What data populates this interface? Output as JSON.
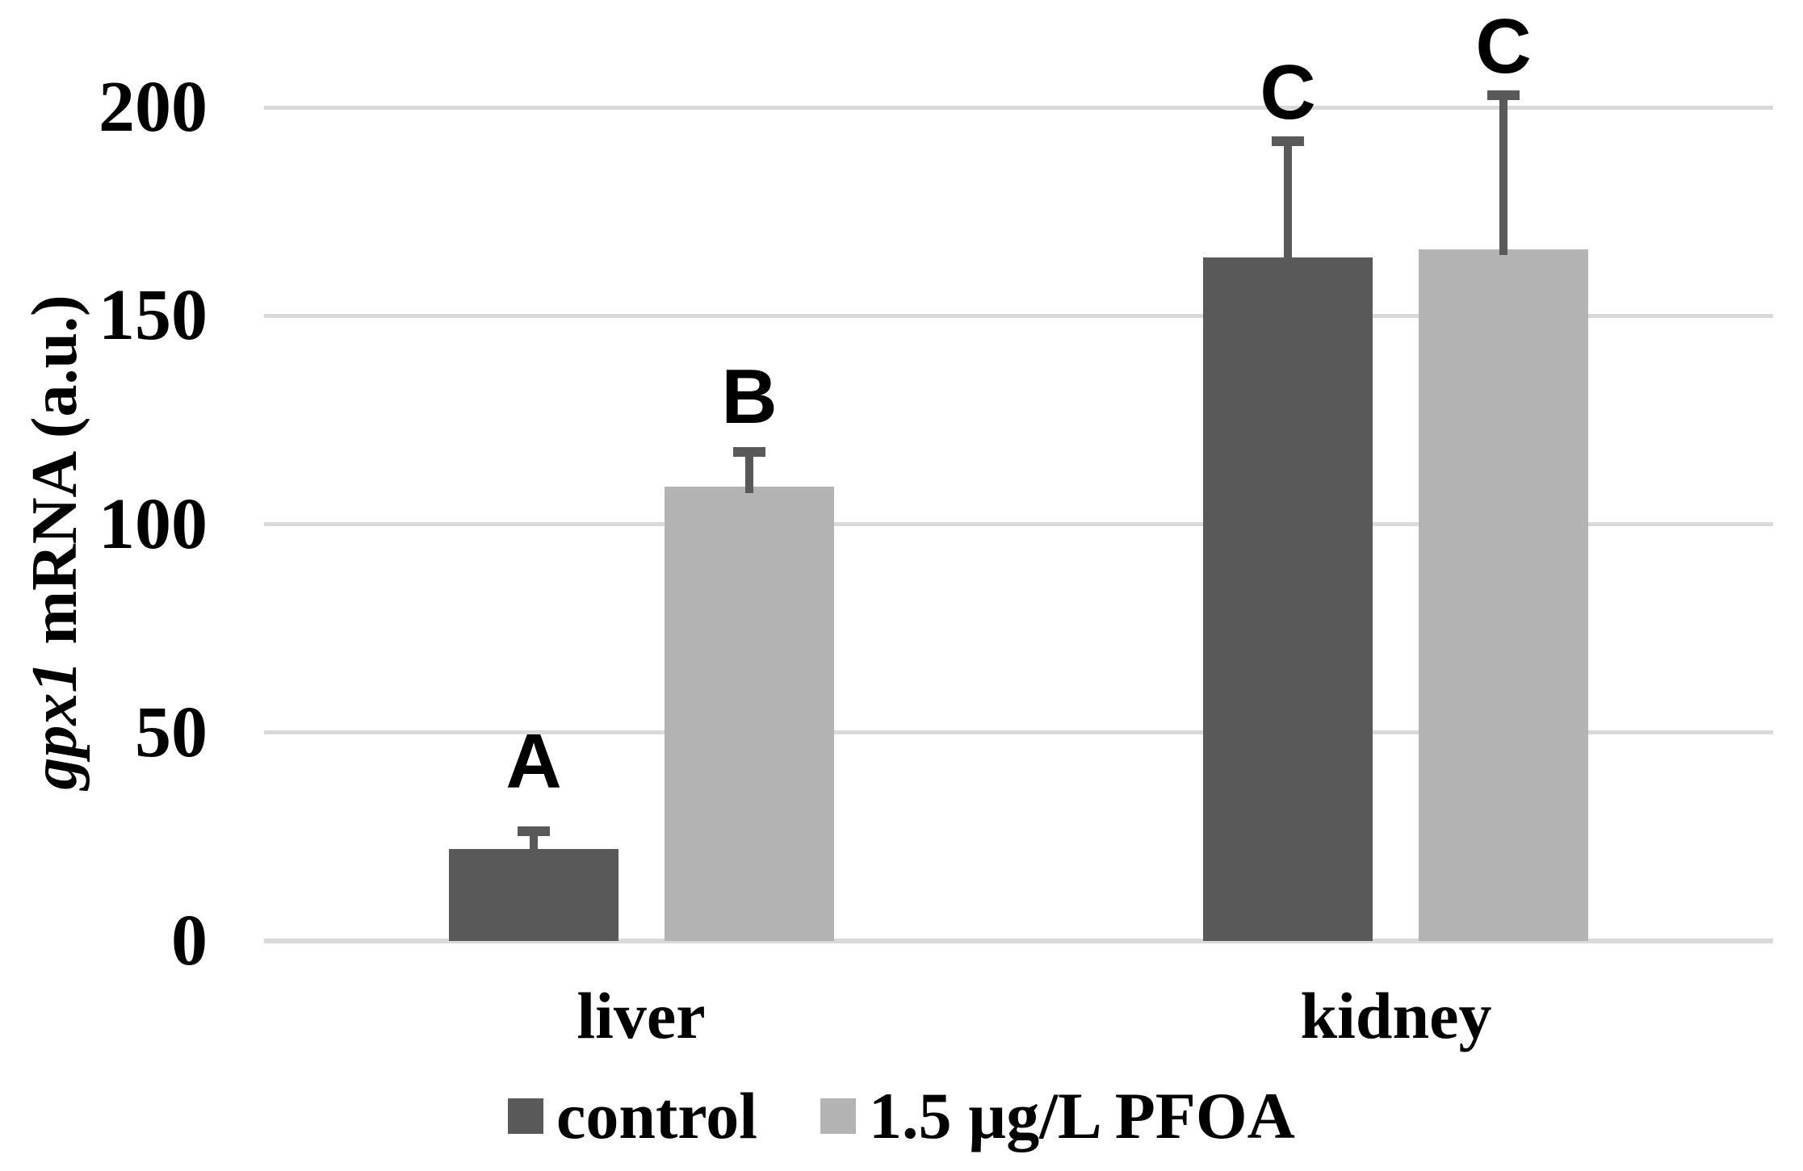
{
  "chart_data": {
    "type": "bar",
    "title": "",
    "ylabel_italic": "gpx1",
    "ylabel_rest": " mRNA (a.u.)",
    "ylabel_full": "gpx1 mRNA (a.u.)",
    "categories": [
      "liver",
      "kidney"
    ],
    "series": [
      {
        "name": "control",
        "color": "#595959",
        "values": [
          22,
          164
        ],
        "errors_plus": [
          5.5,
          29
        ],
        "sig_letters": [
          "A",
          "C"
        ]
      },
      {
        "name": "1.5 µg/L PFOA",
        "color": "#b3b3b3",
        "values": [
          109,
          166
        ],
        "errors_plus": [
          9.5,
          38
        ],
        "sig_letters": [
          "B",
          "C"
        ]
      }
    ],
    "y_ticks": [
      0,
      50,
      100,
      150,
      200
    ],
    "ylim": [
      0,
      200
    ],
    "grid": true,
    "legend_position": "bottom-center",
    "colors": {
      "gridline": "#d9d9d9",
      "error_bar": "#595959",
      "text": "#000000",
      "background": "#ffffff"
    }
  }
}
